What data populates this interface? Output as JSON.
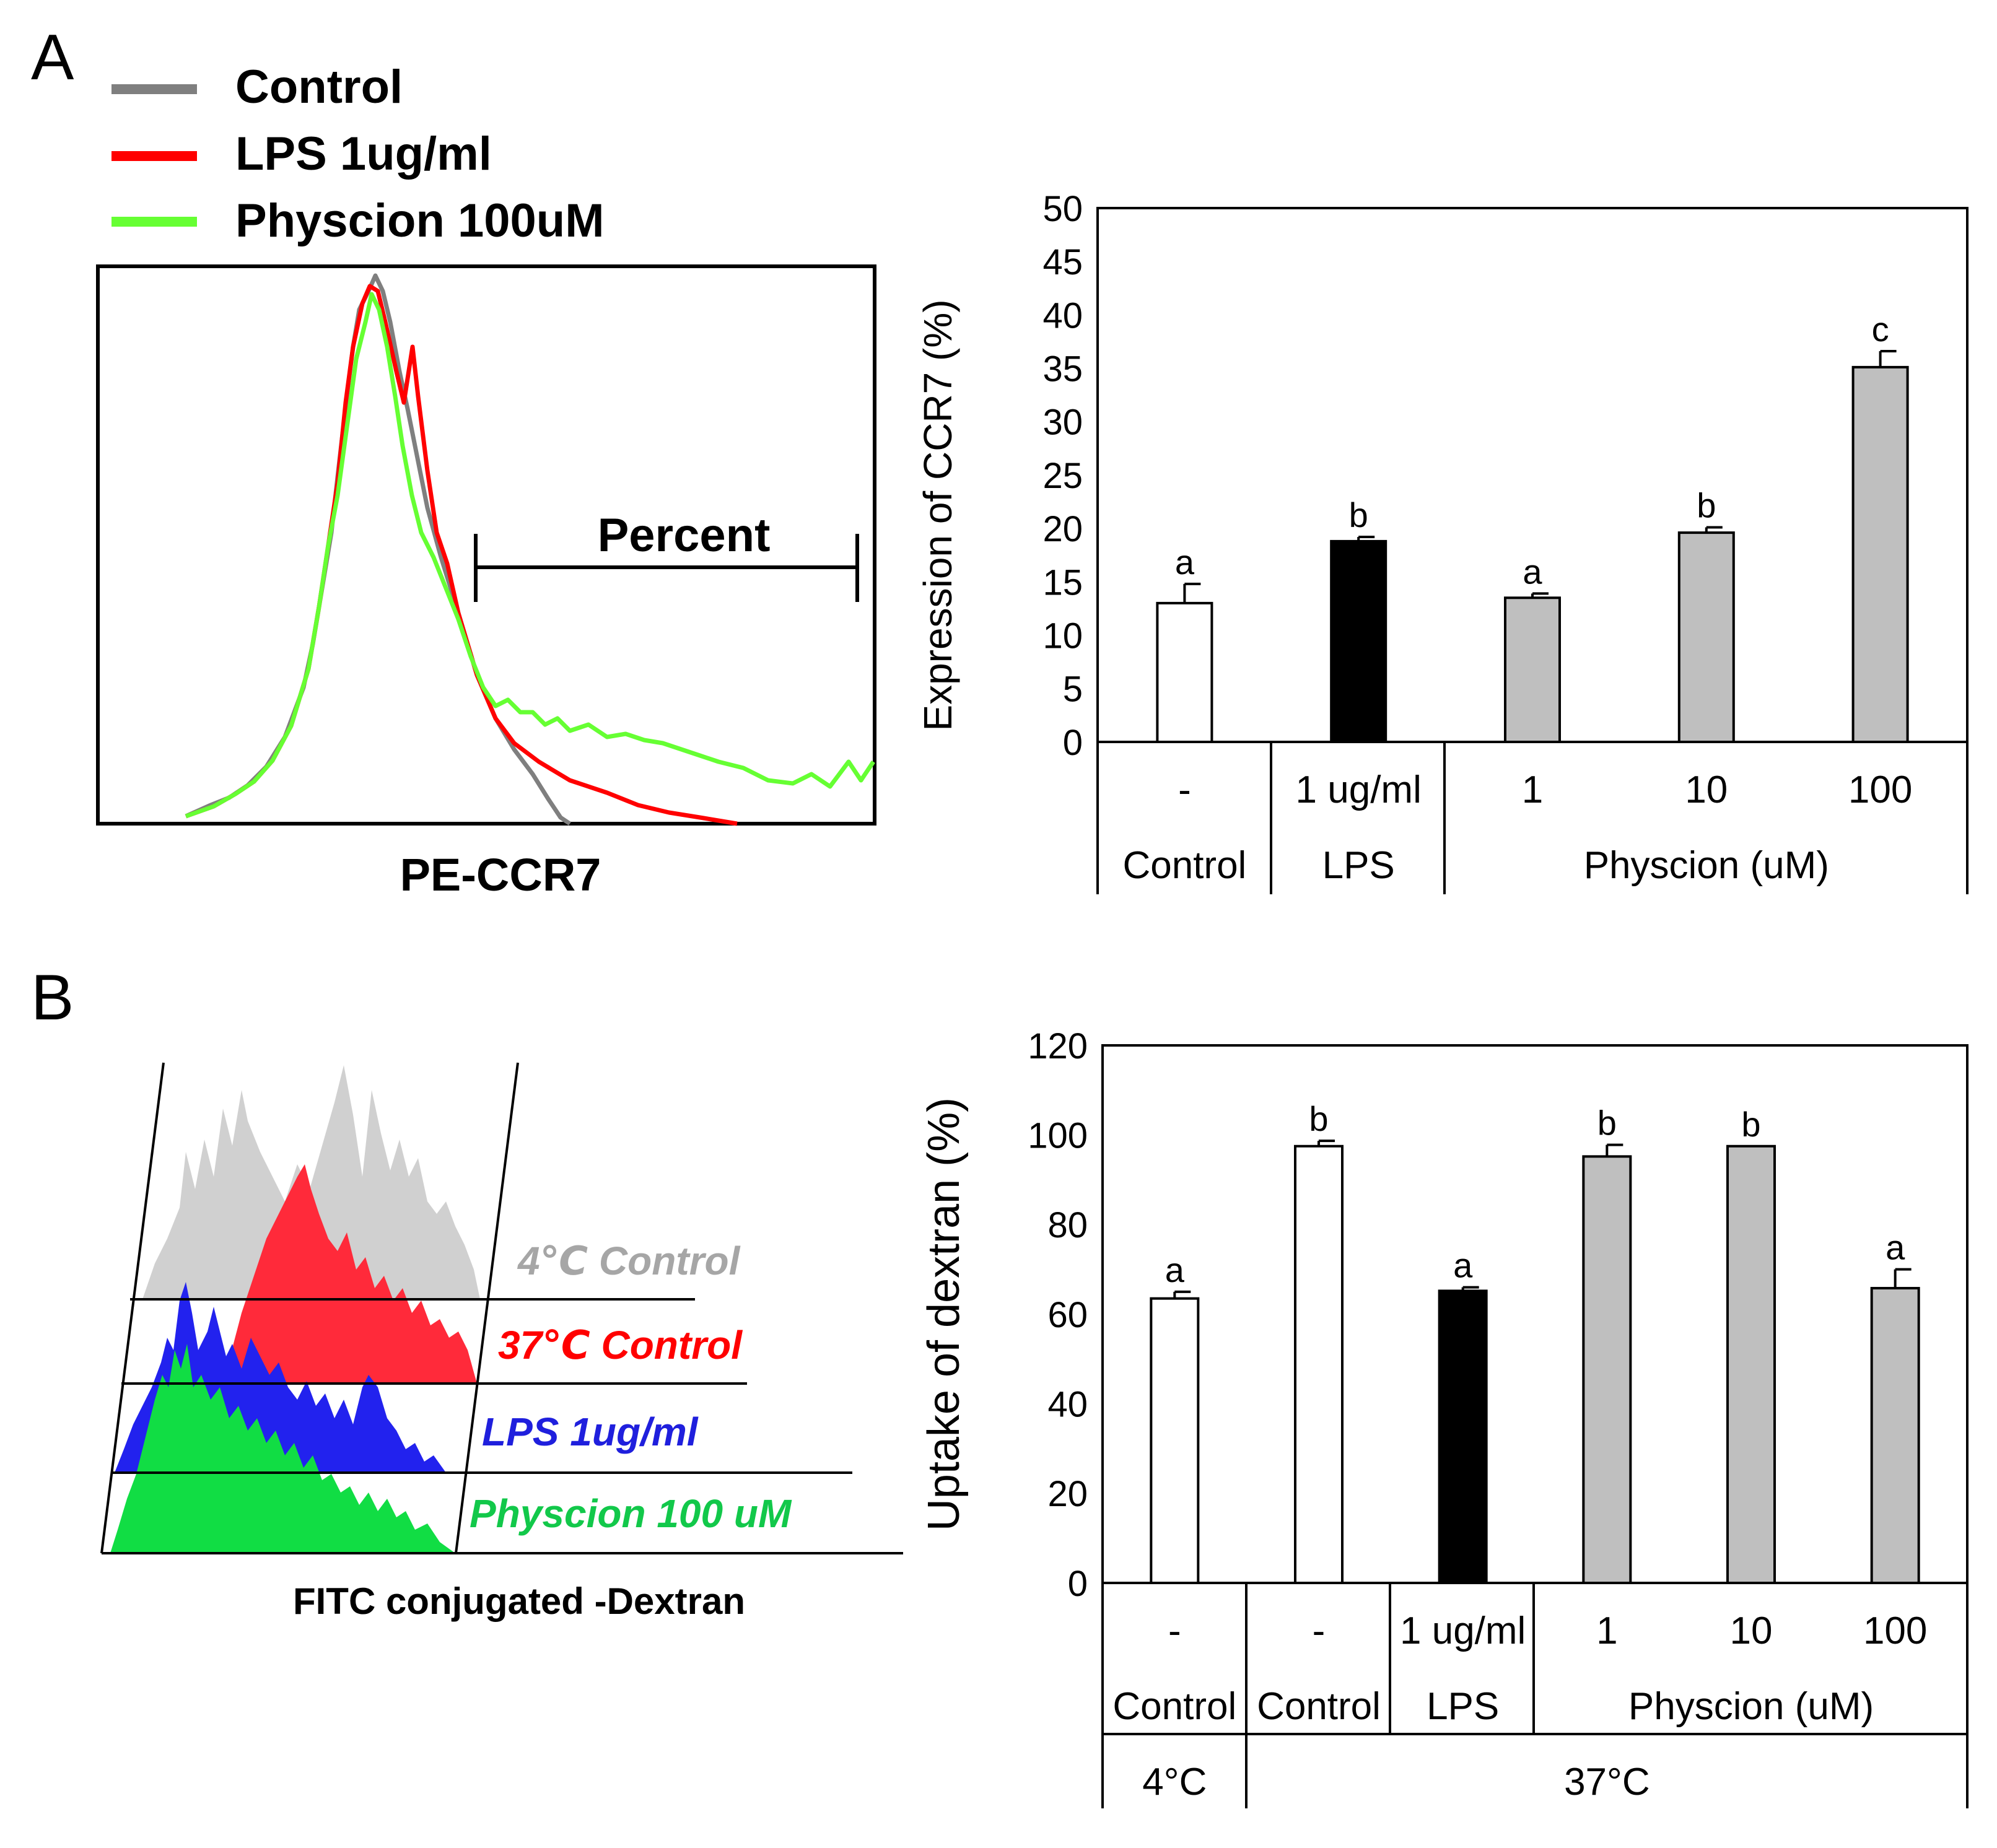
{
  "panel_labels": {
    "a": "A",
    "b": "B"
  },
  "colors": {
    "control_gray": "#7f7f7f",
    "lps_red": "#ff0000",
    "physcion_green": "#66ff33",
    "fitc_gray": "#c8c8c8",
    "fitc_red": "#ff2a3a",
    "fitc_blue": "#2222ee",
    "fitc_green": "#11dd44",
    "bar_gray": "#bfbfbf",
    "bar_black": "#000000",
    "bar_white": "#ffffff"
  },
  "histogram_a": {
    "legend": [
      {
        "label": "Control",
        "color": "#7f7f7f"
      },
      {
        "label": "LPS 1ug/ml",
        "color": "#ff0000"
      },
      {
        "label": "Physcion 100uM",
        "color": "#66ff33"
      }
    ],
    "gate_label": "Percent",
    "xlabel": "PE-CCR7"
  },
  "histogram_b": {
    "labels": [
      {
        "text": "4℃ Control",
        "color": "#a6a6a6"
      },
      {
        "text": "37℃ Control",
        "color": "#ff0000"
      },
      {
        "text": "LPS 1ug/ml",
        "color": "#1f1fdd"
      },
      {
        "text": "Physcion 100 uM",
        "color": "#12c84a"
      }
    ],
    "xlabel": "FITC conjugated -Dextran"
  },
  "chart_data": [
    {
      "type": "bar",
      "ylabel": "Expression of CCR7 (%)",
      "ylim": [
        0,
        50
      ],
      "yticks": [
        0,
        5,
        10,
        15,
        20,
        25,
        30,
        35,
        40,
        45,
        50
      ],
      "categories": [
        "-",
        "1 ug/ml",
        "1",
        "10",
        "100"
      ],
      "values": [
        13,
        18.8,
        13.5,
        19.6,
        35.1
      ],
      "errors": [
        1.8,
        0.4,
        0.4,
        0.5,
        1.5
      ],
      "letters": [
        "a",
        "b",
        "a",
        "b",
        "c"
      ],
      "fills": [
        "#ffffff",
        "#000000",
        "#bfbfbf",
        "#bfbfbf",
        "#bfbfbf"
      ],
      "groups": [
        {
          "label": "Control",
          "span": 1
        },
        {
          "label": "LPS",
          "span": 1
        },
        {
          "label": "Physcion (uM)",
          "span": 3
        }
      ]
    },
    {
      "type": "bar",
      "ylabel": "Uptake of dextran (%)",
      "ylim": [
        0,
        120
      ],
      "yticks": [
        0,
        20,
        40,
        60,
        80,
        100,
        120
      ],
      "categories": [
        "-",
        "-",
        "1 ug/ml",
        "1",
        "10",
        "100"
      ],
      "values": [
        63.5,
        97.5,
        65.2,
        95.2,
        97.5,
        65.8
      ],
      "errors": [
        1.5,
        1.2,
        0.8,
        2.6,
        0,
        4.2
      ],
      "letters": [
        "a",
        "b",
        "a",
        "b",
        "b",
        "a"
      ],
      "fills": [
        "#ffffff",
        "#ffffff",
        "#000000",
        "#bfbfbf",
        "#bfbfbf",
        "#bfbfbf"
      ],
      "groups": [
        {
          "label": "Control",
          "span": 1
        },
        {
          "label": "Control",
          "span": 1
        },
        {
          "label": "LPS",
          "span": 1
        },
        {
          "label": "Physcion (uM)",
          "span": 3
        }
      ],
      "temps": [
        {
          "label": "4°C",
          "span": 1
        },
        {
          "label": "37°C",
          "span": 5
        }
      ]
    }
  ]
}
